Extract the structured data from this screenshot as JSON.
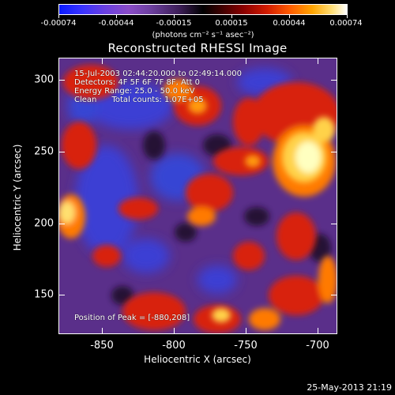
{
  "colorbar": {
    "tick_labels": [
      "-0.00074",
      "-0.00044",
      "-0.00015",
      "0.00015",
      "0.00044",
      "0.00074"
    ],
    "units": "(photons cm⁻² s⁻¹ asec⁻²)",
    "range": [
      -0.00074,
      0.00074
    ],
    "colors": {
      "min": "#0a1aff",
      "mid": "#000000",
      "max": "#ffffff"
    }
  },
  "title": "Reconstructed RHESSI Image",
  "annotations": {
    "time_range": "15-Jul-2003 02:44:20.000 to 02:49:14.000",
    "detectors": "Detectors: 4F 5F 6F 7F 8F, Att 0",
    "energy_range": "Energy Range: 25.0 - 50.0 keV",
    "clean": "Clean      Total counts: 1.07E+05",
    "peak_position": "Position of Peak = [-880,208]"
  },
  "axes": {
    "x_label": "Heliocentric X (arcsec)",
    "y_label": "Heliocentric Y (arcsec)",
    "x_ticks": [
      "-850",
      "-800",
      "-750",
      "-700"
    ],
    "x_tick_values": [
      -850,
      -800,
      -750,
      -700
    ],
    "y_ticks": [
      "300",
      "250",
      "200",
      "150"
    ],
    "y_tick_values": [
      300,
      250,
      200,
      150
    ],
    "x_range": [
      -882,
      -688
    ],
    "y_range": [
      122,
      315
    ]
  },
  "image_colors": {
    "background": "#5a2f8a",
    "cool": "#3a3fd8",
    "dark": "#1a0a25",
    "hot": "#d8200a",
    "hotter": "#ff7a00",
    "hottest": "#ffffc0"
  },
  "footer": {
    "date_stamp": "25-May-2013 21:19"
  }
}
